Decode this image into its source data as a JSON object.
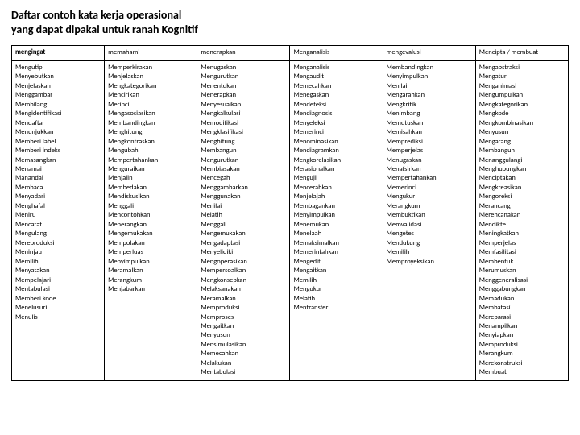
{
  "title_line1": "Daftar contoh kata kerja operasional",
  "title_line2": "yang dapat dipakai untuk ranah Kognitif",
  "table": {
    "columns": [
      "mengingat",
      "memahami",
      "menerapkan",
      "Menganalisis",
      "mengevalusi",
      "Mencipta / membuat"
    ],
    "rows": [
      [
        "Mengutip",
        "Menyebutkan",
        "Menjelaskan",
        "Menggambar",
        "Membilang",
        "Mengidentifikasi",
        "Mendaftar",
        "Menunjukkan",
        "Memberi label",
        "Memberi indeks",
        "Memasangkan",
        "Menamai",
        "Manandai",
        "Membaca",
        "Menyadari",
        "Menghafal",
        "Meniru",
        "Mencatat",
        "Mengulang",
        "Mereproduksi",
        "Meninjau",
        "Memilih",
        "Menyatakan",
        "Mempelajari",
        "Mentabulasi",
        "Memberi kode",
        "Menelusuri",
        "Menulis"
      ],
      [
        "Memperkirakan",
        "Menjelaskan",
        "Mengkategorikan",
        "Mencirikan",
        "Merinci",
        "Mengasosiasikan",
        "Membandingkan",
        "Menghitung",
        "Mengkontraskan",
        "Mengubah",
        "Mempertahankan",
        "Menguraikan",
        "Menjalin",
        "Membedakan",
        "Mendiskusikan",
        "Menggali",
        "Mencontohkan",
        "Menerangkan",
        "Mengemukakan",
        "Mempolakan",
        "Memperluas",
        "Menyimpulkan",
        "Meramalkan",
        "Merangkum",
        "Menjabarkan"
      ],
      [
        "Menugaskan",
        "Mengurutkan",
        "Menentukan",
        "Menerapkan",
        "Menyesuaikan",
        "Mengkalkulasi",
        "Memodifikasi",
        "Mengklasifikasi",
        "Menghitung",
        "Membangun",
        "Mengurutkan",
        "Membiasakan",
        "Mencegah",
        "Menggambarkan",
        "Menggunakan",
        "Menilai",
        "Melatih",
        "Menggali",
        "Mengemukakan",
        "Mengadaptasi",
        "Menyelidiki",
        "Mengoperasikan",
        "Mempersoalkan",
        "Mengkonsepkan",
        "Melaksanakan",
        "Meramalkan",
        "Memproduksi",
        "Memproses",
        "Mengaitkan",
        "Menyusun",
        "Mensimulasikan",
        "Memecahkan",
        "Melakukan",
        "Mentabulasi"
      ],
      [
        "Menganalisis",
        "Mengaudit",
        "Memecahkan",
        "Menegaskan",
        "Mendeteksi",
        "Mendiagnosis",
        "Menyeleksi",
        "Memerinci",
        "Menominasikan",
        "Mendiagramkan",
        "Mengkorelasikan",
        "Merasionalkan",
        "Menguji",
        "Mencerahkan",
        "Menjelajah",
        "Membagankan",
        "Menyimpulkan",
        "Menemukan",
        "Menelaah",
        "Memaksimalkan",
        "Memerintahkan",
        "Mengedit",
        "Mengaitkan",
        "Memilih",
        "Mengukur",
        "Melatih",
        "Mentransfer"
      ],
      [
        "",
        "Membandingkan",
        "Menyimpulkan",
        "Menilai",
        "Mengarahkan",
        "Mengkritik",
        "Menimbang",
        "Memutuskan",
        "Memisahkan",
        "Memprediksi",
        "Memperjelas",
        "Menugaskan",
        "Menafsirkan",
        "Mempertahankan",
        "Memerinci",
        "Mengukur",
        "Merangkum",
        "Membuktikan",
        "Memvalidasi",
        "Mengetes",
        "Mendukung",
        "Memilih",
        "Memproyeksikan"
      ],
      [
        "Mengabstraksi",
        "Mengatur",
        "Menganimasi",
        "Mengumpulkan",
        "Mengkategorikan",
        "Mengkode",
        "Mengkombinasikan",
        "Menyusun",
        "Mengarang",
        "Membangun",
        "Menanggulangi",
        "Menghubungkan",
        "Menciptakan",
        "Mengkreasikan",
        "Mengoreksi",
        "Merancang",
        "Merencanakan",
        "Mendikte",
        "Meningkatkan",
        "Memperjelas",
        "Memfasilitasi",
        "Membentuk",
        "Merumuskan",
        "Menggeneralisasi",
        "Menggabungkan",
        "Memadukan",
        "Membatasi",
        "Mereparasi",
        "Menampilkan",
        "Menyiapkan",
        "Memproduksi",
        "Merangkum",
        "Merekonstruksi",
        "Membuat"
      ]
    ]
  },
  "colors": {
    "background": "#ffffff",
    "text": "#000000",
    "border": "#000000"
  }
}
